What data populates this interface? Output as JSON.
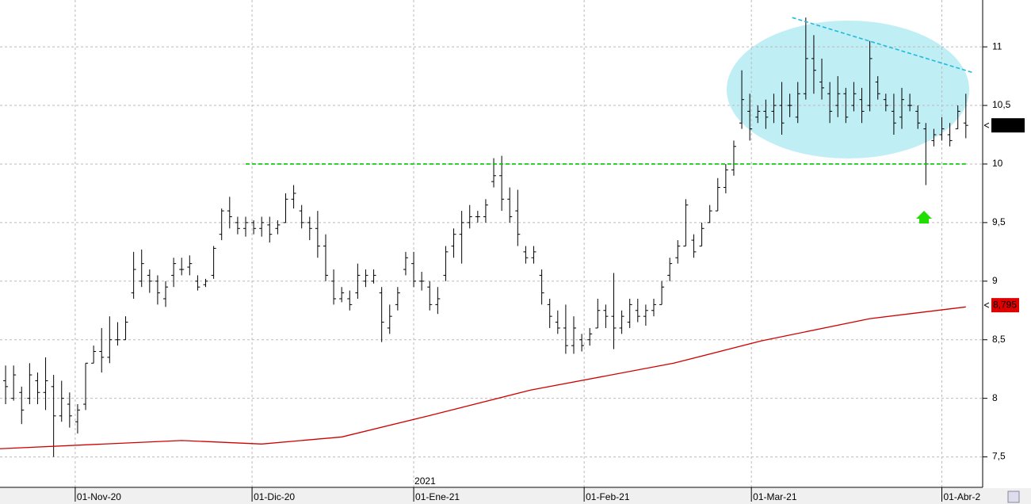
{
  "chart_data": {
    "type": "ohlc",
    "xlim": [
      -0.7,
      122.1
    ],
    "ylim": [
      7.24,
      11.4
    ],
    "yticks": [
      {
        "value": 7.5,
        "label": "7,5"
      },
      8,
      {
        "value": 8.5,
        "label": "8,5"
      },
      9,
      {
        "value": 9.5,
        "label": "9,5"
      },
      10,
      {
        "value": 10.5,
        "label": "10,5"
      },
      11
    ],
    "xticks": [
      {
        "value": 8.7,
        "label": "01-Nov-20"
      },
      {
        "value": 30.8,
        "label": "01-Dic-20"
      },
      {
        "value": 51,
        "label": "01-Ene-21"
      },
      {
        "value": 72.3,
        "label": "01-Feb-21"
      },
      {
        "value": 93.2,
        "label": "01-Mar-21"
      },
      {
        "value": 117,
        "label": "01-Abr-2"
      }
    ],
    "year_label": {
      "value": 51,
      "label": "2021"
    },
    "grid": true,
    "color": "#000000",
    "x": [
      0,
      1,
      2,
      3,
      4,
      5,
      6,
      7,
      8,
      9,
      10,
      11,
      12,
      13,
      14,
      15,
      16,
      17,
      18,
      19,
      20,
      21,
      22,
      23,
      24,
      25,
      26,
      27,
      28,
      29,
      30,
      31,
      32,
      33,
      34,
      35,
      36,
      37,
      38,
      39,
      40,
      41,
      42,
      43,
      44,
      45,
      46,
      47,
      48,
      49,
      50,
      51,
      52,
      53,
      54,
      55,
      56,
      57,
      58,
      59,
      60,
      61,
      62,
      63,
      64,
      65,
      66,
      67,
      68,
      69,
      70,
      71,
      72,
      73,
      74,
      75,
      76,
      77,
      78,
      79,
      80,
      81,
      82,
      83,
      84,
      85,
      86,
      87,
      88,
      89,
      90,
      91,
      92,
      93,
      94,
      95,
      96,
      97,
      98,
      99,
      100,
      101,
      102,
      103,
      104,
      105,
      106,
      107,
      108,
      109,
      110,
      111,
      112,
      113,
      114,
      115,
      116,
      117,
      118,
      119,
      120
    ],
    "high": [
      8.28,
      8.28,
      8.1,
      8.3,
      8.22,
      8.35,
      8.2,
      8.15,
      8.05,
      7.95,
      8.3,
      8.45,
      8.6,
      8.7,
      8.65,
      8.7,
      9.25,
      9.27,
      9.1,
      9.05,
      9.0,
      9.2,
      9.2,
      9.22,
      9.05,
      9.02,
      9.3,
      9.62,
      9.72,
      9.55,
      9.55,
      9.52,
      9.55,
      9.55,
      9.52,
      9.75,
      9.82,
      9.65,
      9.55,
      9.6,
      9.4,
      9.1,
      8.95,
      8.92,
      9.15,
      9.1,
      9.1,
      8.95,
      8.8,
      8.95,
      9.25,
      9.25,
      9.08,
      9.0,
      8.95,
      9.3,
      9.45,
      9.6,
      9.65,
      9.6,
      9.7,
      10.05,
      10.07,
      9.8,
      9.78,
      9.3,
      9.3,
      9.1,
      8.85,
      8.75,
      8.8,
      8.7,
      8.55,
      8.6,
      8.85,
      8.8,
      9.07,
      8.75,
      8.85,
      8.85,
      8.8,
      8.85,
      9.0,
      9.2,
      9.35,
      9.7,
      9.4,
      9.5,
      9.65,
      9.88,
      10.0,
      10.2,
      10.8,
      10.6,
      10.5,
      10.55,
      10.6,
      10.7,
      10.6,
      10.7,
      11.25,
      11.1,
      10.9,
      10.7,
      10.75,
      10.65,
      10.7,
      10.65,
      11.05,
      10.75,
      10.6,
      10.6,
      10.65,
      10.6,
      10.5,
      10.35,
      10.3,
      10.4,
      10.35,
      10.5,
      10.6
    ],
    "low": [
      7.95,
      7.98,
      7.78,
      7.95,
      7.95,
      7.9,
      7.5,
      7.8,
      7.75,
      7.7,
      7.9,
      8.3,
      8.22,
      8.3,
      8.45,
      8.5,
      8.85,
      8.95,
      8.9,
      8.8,
      8.78,
      8.95,
      9.05,
      9.05,
      8.92,
      8.95,
      9.02,
      9.35,
      9.45,
      9.4,
      9.38,
      9.4,
      9.38,
      9.33,
      9.4,
      9.5,
      9.62,
      9.45,
      9.35,
      9.2,
      9.0,
      8.8,
      8.82,
      8.75,
      8.85,
      8.95,
      8.98,
      8.48,
      8.55,
      8.75,
      9.05,
      8.95,
      8.92,
      8.75,
      8.72,
      9.0,
      9.2,
      9.15,
      9.45,
      9.5,
      9.5,
      9.8,
      9.6,
      9.5,
      9.3,
      9.15,
      9.15,
      8.8,
      8.6,
      8.55,
      8.38,
      8.38,
      8.4,
      8.45,
      8.6,
      8.6,
      8.42,
      8.55,
      8.6,
      8.65,
      8.62,
      8.7,
      8.8,
      9.0,
      9.15,
      9.3,
      9.2,
      9.3,
      9.5,
      9.6,
      9.75,
      9.9,
      10.3,
      10.2,
      10.35,
      10.3,
      10.35,
      10.25,
      10.4,
      10.35,
      10.55,
      10.6,
      10.55,
      10.35,
      10.4,
      10.35,
      10.45,
      10.35,
      10.45,
      10.55,
      10.45,
      10.25,
      10.3,
      10.45,
      10.3,
      9.82,
      10.15,
      10.2,
      10.15,
      10.3,
      10.22
    ],
    "open": [
      8.15,
      8.0,
      8.05,
      8.0,
      8.15,
      8.05,
      8.1,
      7.85,
      7.95,
      7.8,
      7.95,
      8.3,
      8.4,
      8.35,
      8.5,
      8.5,
      8.9,
      9.0,
      9.05,
      9.0,
      8.85,
      9.05,
      9.1,
      9.12,
      9.0,
      8.97,
      9.05,
      9.4,
      9.6,
      9.5,
      9.45,
      9.5,
      9.45,
      9.48,
      9.45,
      9.5,
      9.7,
      9.6,
      9.5,
      9.45,
      9.3,
      9.0,
      8.85,
      8.85,
      8.9,
      9.0,
      9.0,
      8.9,
      8.6,
      8.8,
      9.1,
      9.15,
      9.0,
      8.95,
      8.8,
      9.05,
      9.3,
      9.4,
      9.5,
      9.55,
      9.55,
      9.85,
      9.9,
      9.7,
      9.6,
      9.25,
      9.2,
      9.05,
      8.8,
      8.65,
      8.6,
      8.45,
      8.5,
      8.5,
      8.6,
      8.75,
      8.7,
      8.6,
      8.65,
      8.75,
      8.7,
      8.75,
      8.8,
      9.05,
      9.2,
      9.3,
      9.35,
      9.3,
      9.5,
      9.6,
      9.8,
      9.95,
      10.35,
      10.45,
      10.4,
      10.45,
      10.45,
      10.5,
      10.5,
      10.4,
      10.6,
      10.9,
      10.7,
      10.6,
      10.5,
      10.6,
      10.5,
      10.55,
      10.5,
      10.7,
      10.55,
      10.45,
      10.4,
      10.5,
      10.45,
      10.3,
      10.2,
      10.25,
      10.25,
      10.3,
      10.35
    ],
    "close": [
      8.1,
      8.2,
      7.9,
      8.2,
      8.05,
      8.15,
      7.85,
      8.0,
      7.85,
      7.9,
      8.3,
      8.4,
      8.35,
      8.5,
      8.5,
      8.65,
      9.1,
      9.15,
      9.0,
      8.9,
      8.95,
      9.15,
      9.1,
      9.15,
      8.95,
      9.0,
      9.28,
      9.6,
      9.55,
      9.45,
      9.5,
      9.45,
      9.5,
      9.4,
      9.48,
      9.7,
      9.75,
      9.5,
      9.45,
      9.3,
      9.05,
      8.85,
      8.9,
      8.8,
      9.05,
      9.05,
      9.05,
      8.65,
      8.7,
      8.9,
      9.2,
      9.0,
      9.0,
      8.8,
      8.85,
      9.25,
      9.4,
      9.5,
      9.55,
      9.55,
      9.65,
      9.9,
      9.7,
      9.55,
      9.4,
      9.2,
      9.25,
      8.9,
      8.7,
      8.6,
      8.45,
      8.6,
      8.45,
      8.55,
      8.75,
      8.7,
      8.6,
      8.7,
      8.8,
      8.7,
      8.75,
      8.8,
      8.95,
      9.15,
      9.3,
      9.65,
      9.25,
      9.45,
      9.6,
      9.8,
      9.95,
      10.15,
      10.55,
      10.3,
      10.45,
      10.4,
      10.5,
      10.35,
      10.5,
      10.6,
      10.9,
      10.8,
      10.65,
      10.45,
      10.6,
      10.4,
      10.6,
      10.45,
      10.9,
      10.6,
      10.5,
      10.35,
      10.55,
      10.5,
      10.35,
      10.0,
      10.25,
      10.3,
      10.2,
      10.45,
      10.33
    ],
    "moving_average": {
      "color": "#d00000",
      "x": [
        -0.7,
        22,
        32,
        42,
        52.8,
        65.6,
        83.5,
        94.4,
        108,
        120
      ],
      "values": [
        7.57,
        7.64,
        7.61,
        7.67,
        7.85,
        8.07,
        8.3,
        8.49,
        8.68,
        8.78
      ],
      "last": 8.795,
      "last_label": "8,795"
    },
    "lines": [
      {
        "name": "support",
        "color": "#00cc00",
        "dashed": true,
        "x": [
          30,
          120
        ],
        "values": [
          10,
          10
        ]
      },
      {
        "name": "trend",
        "color": "#22bbdd",
        "dashed": true,
        "x": [
          98.3,
          120.9
        ],
        "values": [
          11.25,
          10.78
        ]
      }
    ]
  }
}
